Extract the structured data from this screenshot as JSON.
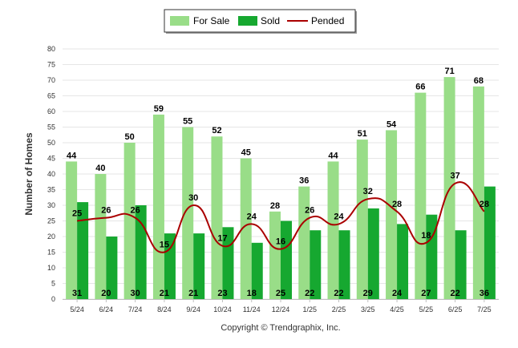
{
  "chart_data": {
    "type": "bar",
    "categories": [
      "5/24",
      "6/24",
      "7/24",
      "8/24",
      "9/24",
      "10/24",
      "11/24",
      "12/24",
      "1/25",
      "2/25",
      "3/25",
      "4/25",
      "5/25",
      "6/25",
      "7/25"
    ],
    "series": [
      {
        "name": "For Sale",
        "kind": "bar",
        "color": "#99dd88",
        "values": [
          44,
          40,
          50,
          59,
          55,
          52,
          45,
          28,
          36,
          44,
          51,
          54,
          66,
          71,
          68
        ]
      },
      {
        "name": "Sold",
        "kind": "bar",
        "color": "#16a830",
        "values": [
          31,
          20,
          30,
          21,
          21,
          23,
          18,
          25,
          22,
          22,
          29,
          24,
          27,
          22,
          36
        ]
      },
      {
        "name": "Pended",
        "kind": "line",
        "color": "#aa0000",
        "values": [
          25,
          26,
          26,
          15,
          30,
          17,
          24,
          16,
          26,
          24,
          32,
          28,
          18,
          37,
          28
        ]
      }
    ],
    "title": "",
    "xlabel": "",
    "ylabel": "Number of Homes",
    "ylim": [
      0,
      80
    ],
    "yticks": [
      0,
      5,
      10,
      15,
      20,
      25,
      30,
      35,
      40,
      45,
      50,
      55,
      60,
      65,
      70,
      75,
      80
    ],
    "grid": true,
    "legend": "top-center"
  },
  "footer": {
    "copyright": "Copyright © Trendgraphix, Inc."
  }
}
